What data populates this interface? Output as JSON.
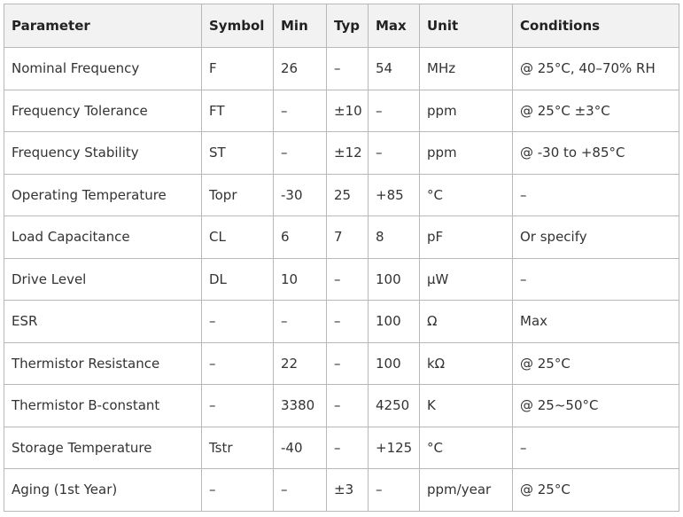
{
  "table": {
    "headers": [
      "Parameter",
      "Symbol",
      "Min",
      "Typ",
      "Max",
      "Unit",
      "Conditions"
    ],
    "rows": [
      [
        "Nominal Frequency",
        "F",
        "26",
        "–",
        "54",
        "MHz",
        "@ 25°C, 40–70% RH"
      ],
      [
        "Frequency Tolerance",
        "FT",
        "–",
        "±10",
        "–",
        "ppm",
        "@ 25°C ±3°C"
      ],
      [
        "Frequency Stability",
        "ST",
        "–",
        "±12",
        "–",
        "ppm",
        "@ -30 to +85°C"
      ],
      [
        "Operating Temperature",
        "Topr",
        "-30",
        "25",
        "+85",
        "°C",
        "–"
      ],
      [
        "Load Capacitance",
        "CL",
        "6",
        "7",
        "8",
        "pF",
        "Or specify"
      ],
      [
        "Drive Level",
        "DL",
        "10",
        "–",
        "100",
        "μW",
        "–"
      ],
      [
        "ESR",
        "–",
        "–",
        "–",
        "100",
        "Ω",
        "Max"
      ],
      [
        "Thermistor Resistance",
        "–",
        "22",
        "–",
        "100",
        "kΩ",
        "@ 25°C"
      ],
      [
        "Thermistor B-constant",
        "–",
        "3380",
        "–",
        "4250",
        "K",
        "@ 25~50°C"
      ],
      [
        "Storage Temperature",
        "Tstr",
        "-40",
        "–",
        "+125",
        "°C",
        "–"
      ],
      [
        "Aging (1st Year)",
        "–",
        "–",
        "±3",
        "–",
        "ppm/year",
        "@ 25°C"
      ]
    ]
  }
}
